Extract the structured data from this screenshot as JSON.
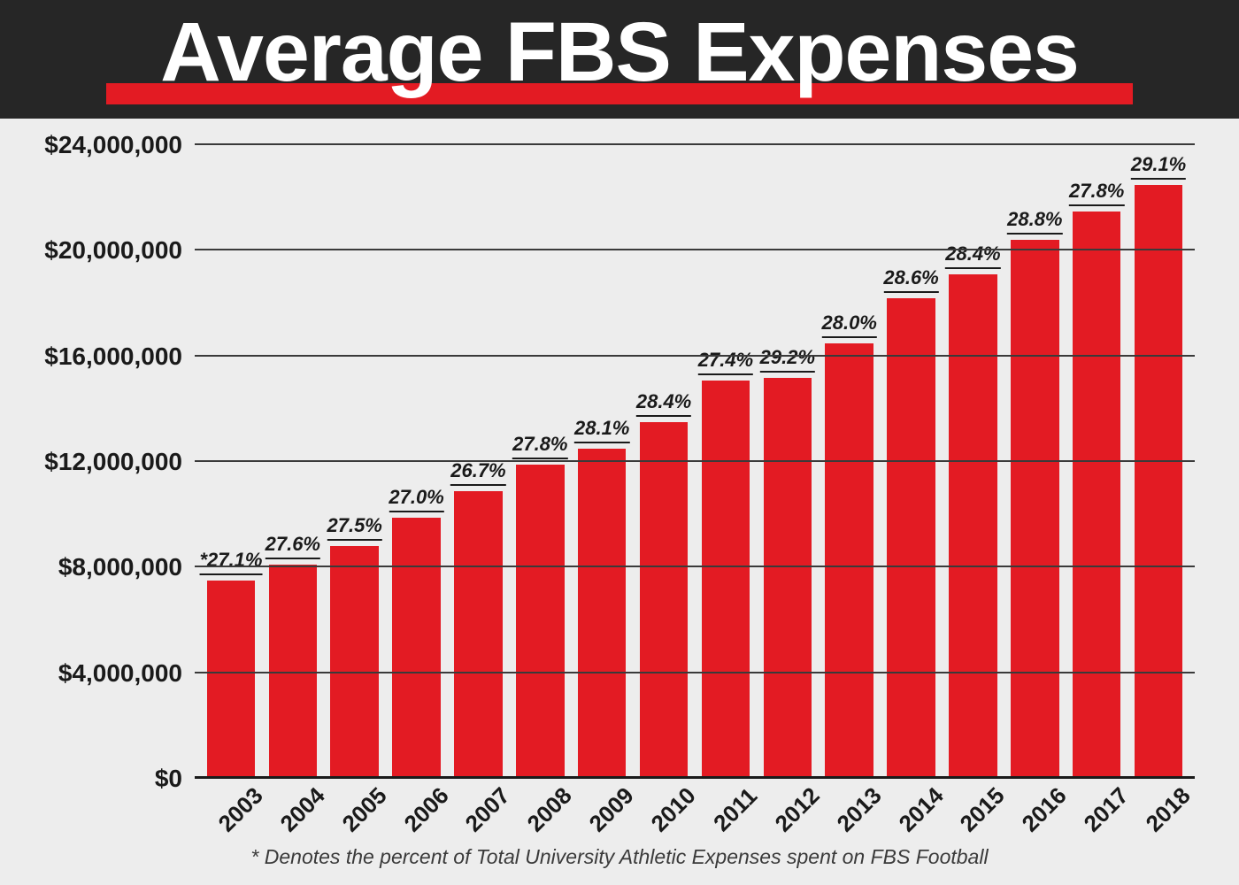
{
  "header": {
    "title": "Average FBS Expenses",
    "title_color": "#ffffff",
    "title_fontsize": 95,
    "title_weight": 800,
    "background_color": "#262626",
    "underline_color": "#e31b23",
    "underline_height": 24
  },
  "chart": {
    "type": "bar",
    "background_color": "#ededed",
    "bar_color": "#e31b23",
    "bar_width": 0.88,
    "grid_color": "#3a3a3a",
    "axis_color": "#1a1a1a",
    "label_color": "#1a1a1a",
    "label_fontsize": 22,
    "label_fontstyle": "italic",
    "label_fontweight": 700,
    "ytick_label_fontsize": 28,
    "xtick_label_fontsize": 26,
    "xtick_rotation_deg": -45,
    "ylim": [
      0,
      24000000
    ],
    "ytick_step": 4000000,
    "yticks": [
      {
        "value": 0,
        "label": "$0"
      },
      {
        "value": 4000000,
        "label": "$4,000,000"
      },
      {
        "value": 8000000,
        "label": "$8,000,000"
      },
      {
        "value": 12000000,
        "label": "$12,000,000"
      },
      {
        "value": 16000000,
        "label": "$16,000,000"
      },
      {
        "value": 20000000,
        "label": "$20,000,000"
      },
      {
        "value": 24000000,
        "label": "$24,000,000"
      }
    ],
    "categories": [
      "2003",
      "2004",
      "2005",
      "2006",
      "2007",
      "2008",
      "2009",
      "2010",
      "2011",
      "2012",
      "2013",
      "2014",
      "2015",
      "2016",
      "2017",
      "2018"
    ],
    "values": [
      7500000,
      8100000,
      8800000,
      9900000,
      10900000,
      11900000,
      12500000,
      13500000,
      15100000,
      15200000,
      16500000,
      18200000,
      19100000,
      20400000,
      21500000,
      22500000
    ],
    "percent_labels": [
      "*27.1%",
      "27.6%",
      "27.5%",
      "27.0%",
      "26.7%",
      "27.8%",
      "28.1%",
      "28.4%",
      "27.4%",
      "29.2%",
      "28.0%",
      "28.6%",
      "28.4%",
      "28.8%",
      "27.8%",
      "29.1%"
    ]
  },
  "footnote": {
    "text": "* Denotes the percent of Total University Athletic Expenses spent on FBS Football",
    "fontsize": 23,
    "fontstyle": "italic",
    "color": "#3a3a3a"
  }
}
